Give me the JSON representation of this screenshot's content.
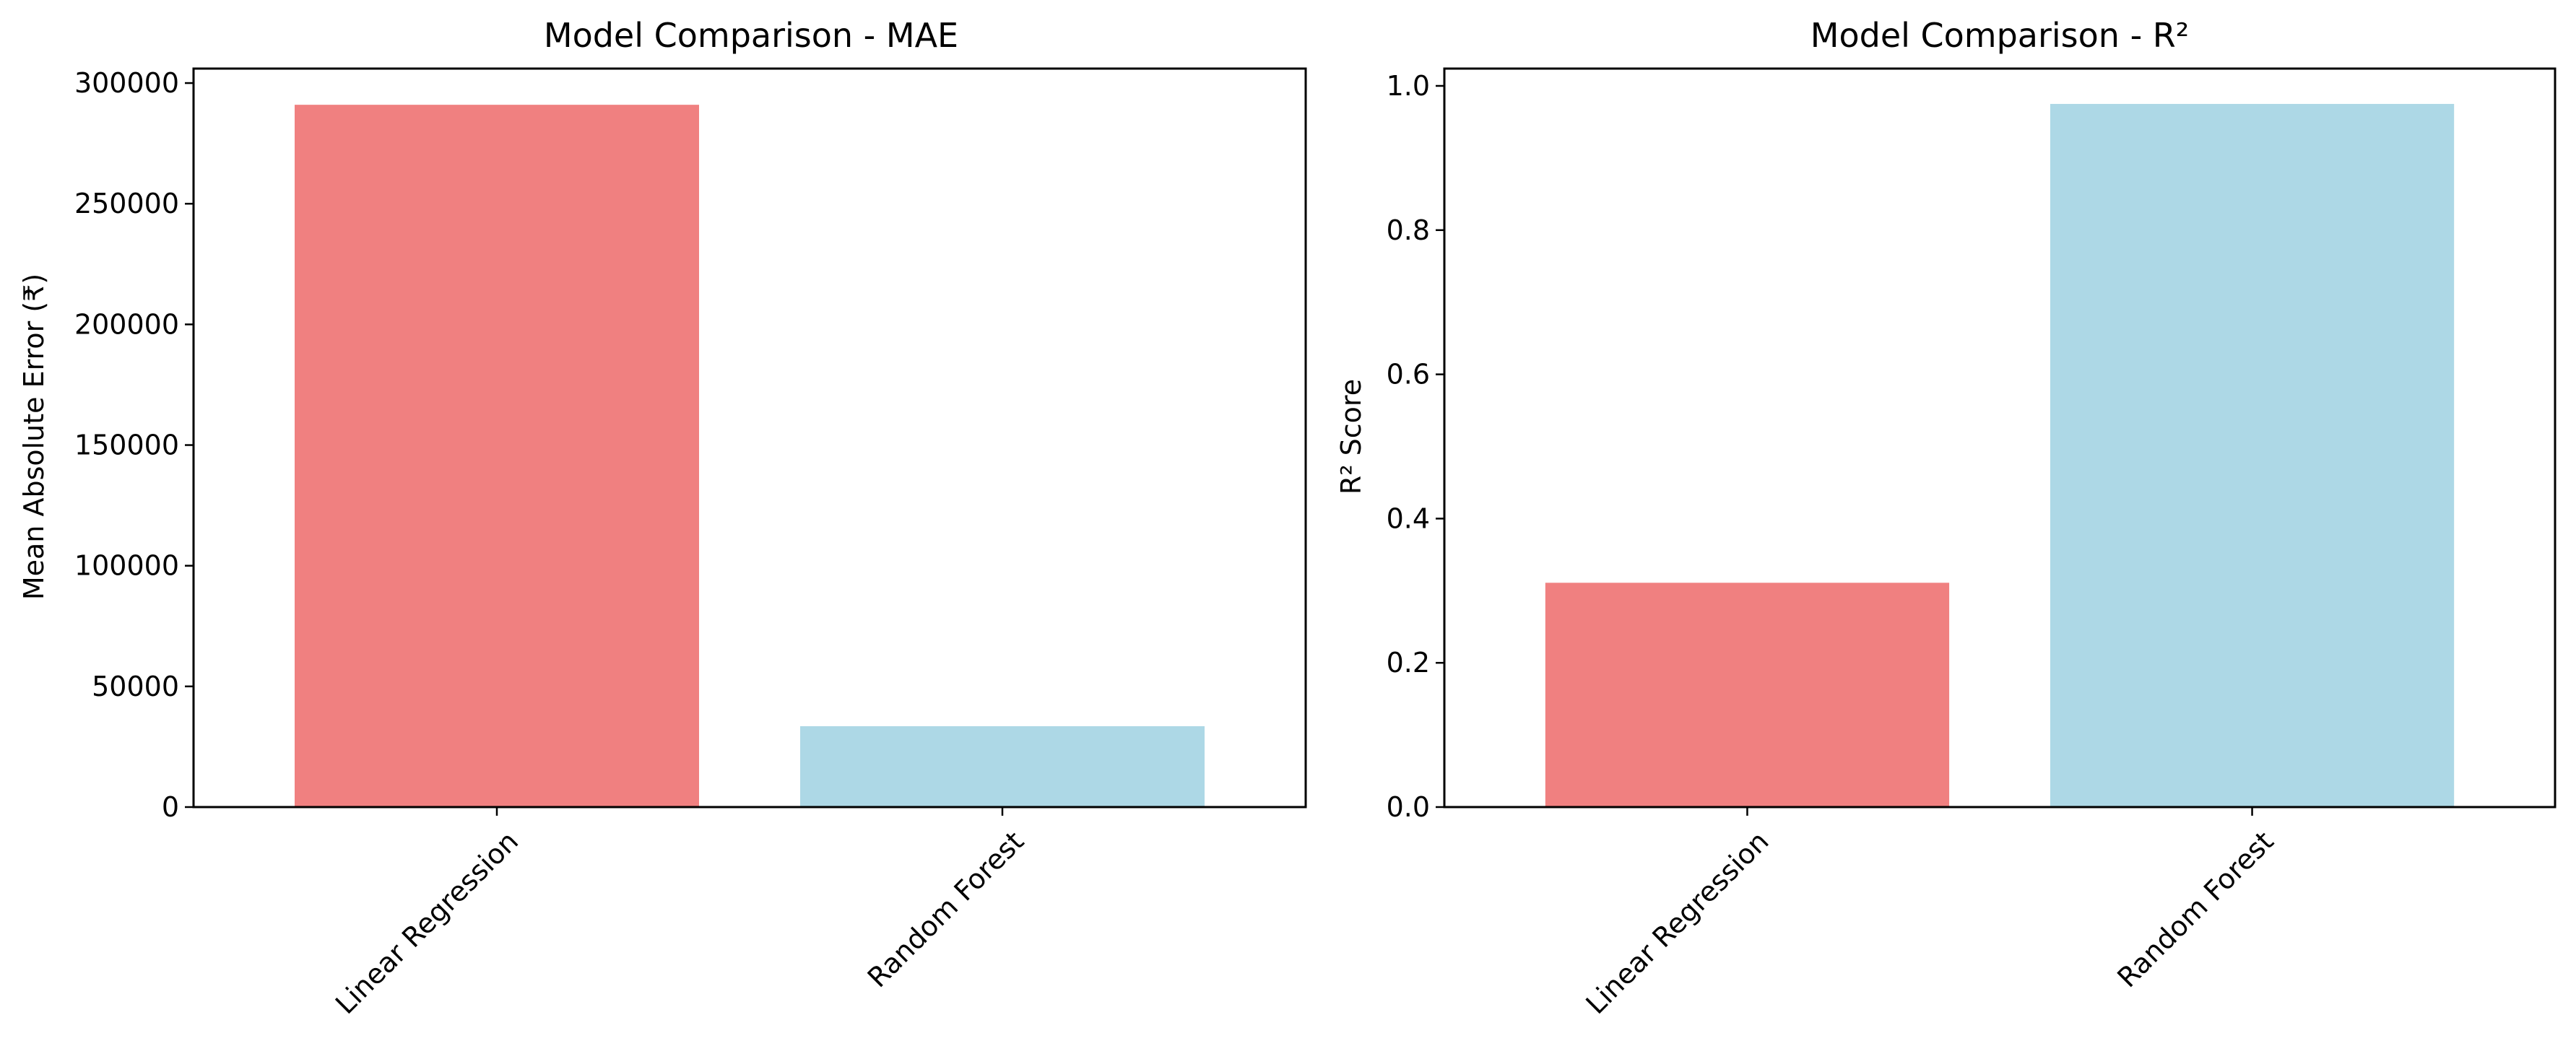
{
  "chart_data": [
    {
      "type": "bar",
      "title": "Model Comparison - MAE",
      "xlabel": "",
      "ylabel": "Mean Absolute Error (₹)",
      "categories": [
        "Linear Regression",
        "Random Forest"
      ],
      "values": [
        291000,
        33500
      ],
      "colors": [
        "#f08080",
        "#add8e6"
      ],
      "ylim": [
        0,
        306000
      ],
      "yticks": [
        0,
        50000,
        100000,
        150000,
        200000,
        250000,
        300000
      ],
      "ytick_labels": [
        "0",
        "50000",
        "100000",
        "150000",
        "200000",
        "250000",
        "300000"
      ],
      "grid": false,
      "xtick_rotation": 45
    },
    {
      "type": "bar",
      "title": "Model Comparison - R²",
      "xlabel": "",
      "ylabel": "R² Score",
      "categories": [
        "Linear Regression",
        "Random Forest"
      ],
      "values": [
        0.311,
        0.975
      ],
      "colors": [
        "#f08080",
        "#add8e6"
      ],
      "ylim": [
        0,
        1.024
      ],
      "yticks": [
        0.0,
        0.2,
        0.4,
        0.6,
        0.8,
        1.0
      ],
      "ytick_labels": [
        "0.0",
        "0.2",
        "0.4",
        "0.6",
        "0.8",
        "1.0"
      ],
      "grid": false,
      "xtick_rotation": 45
    }
  ]
}
